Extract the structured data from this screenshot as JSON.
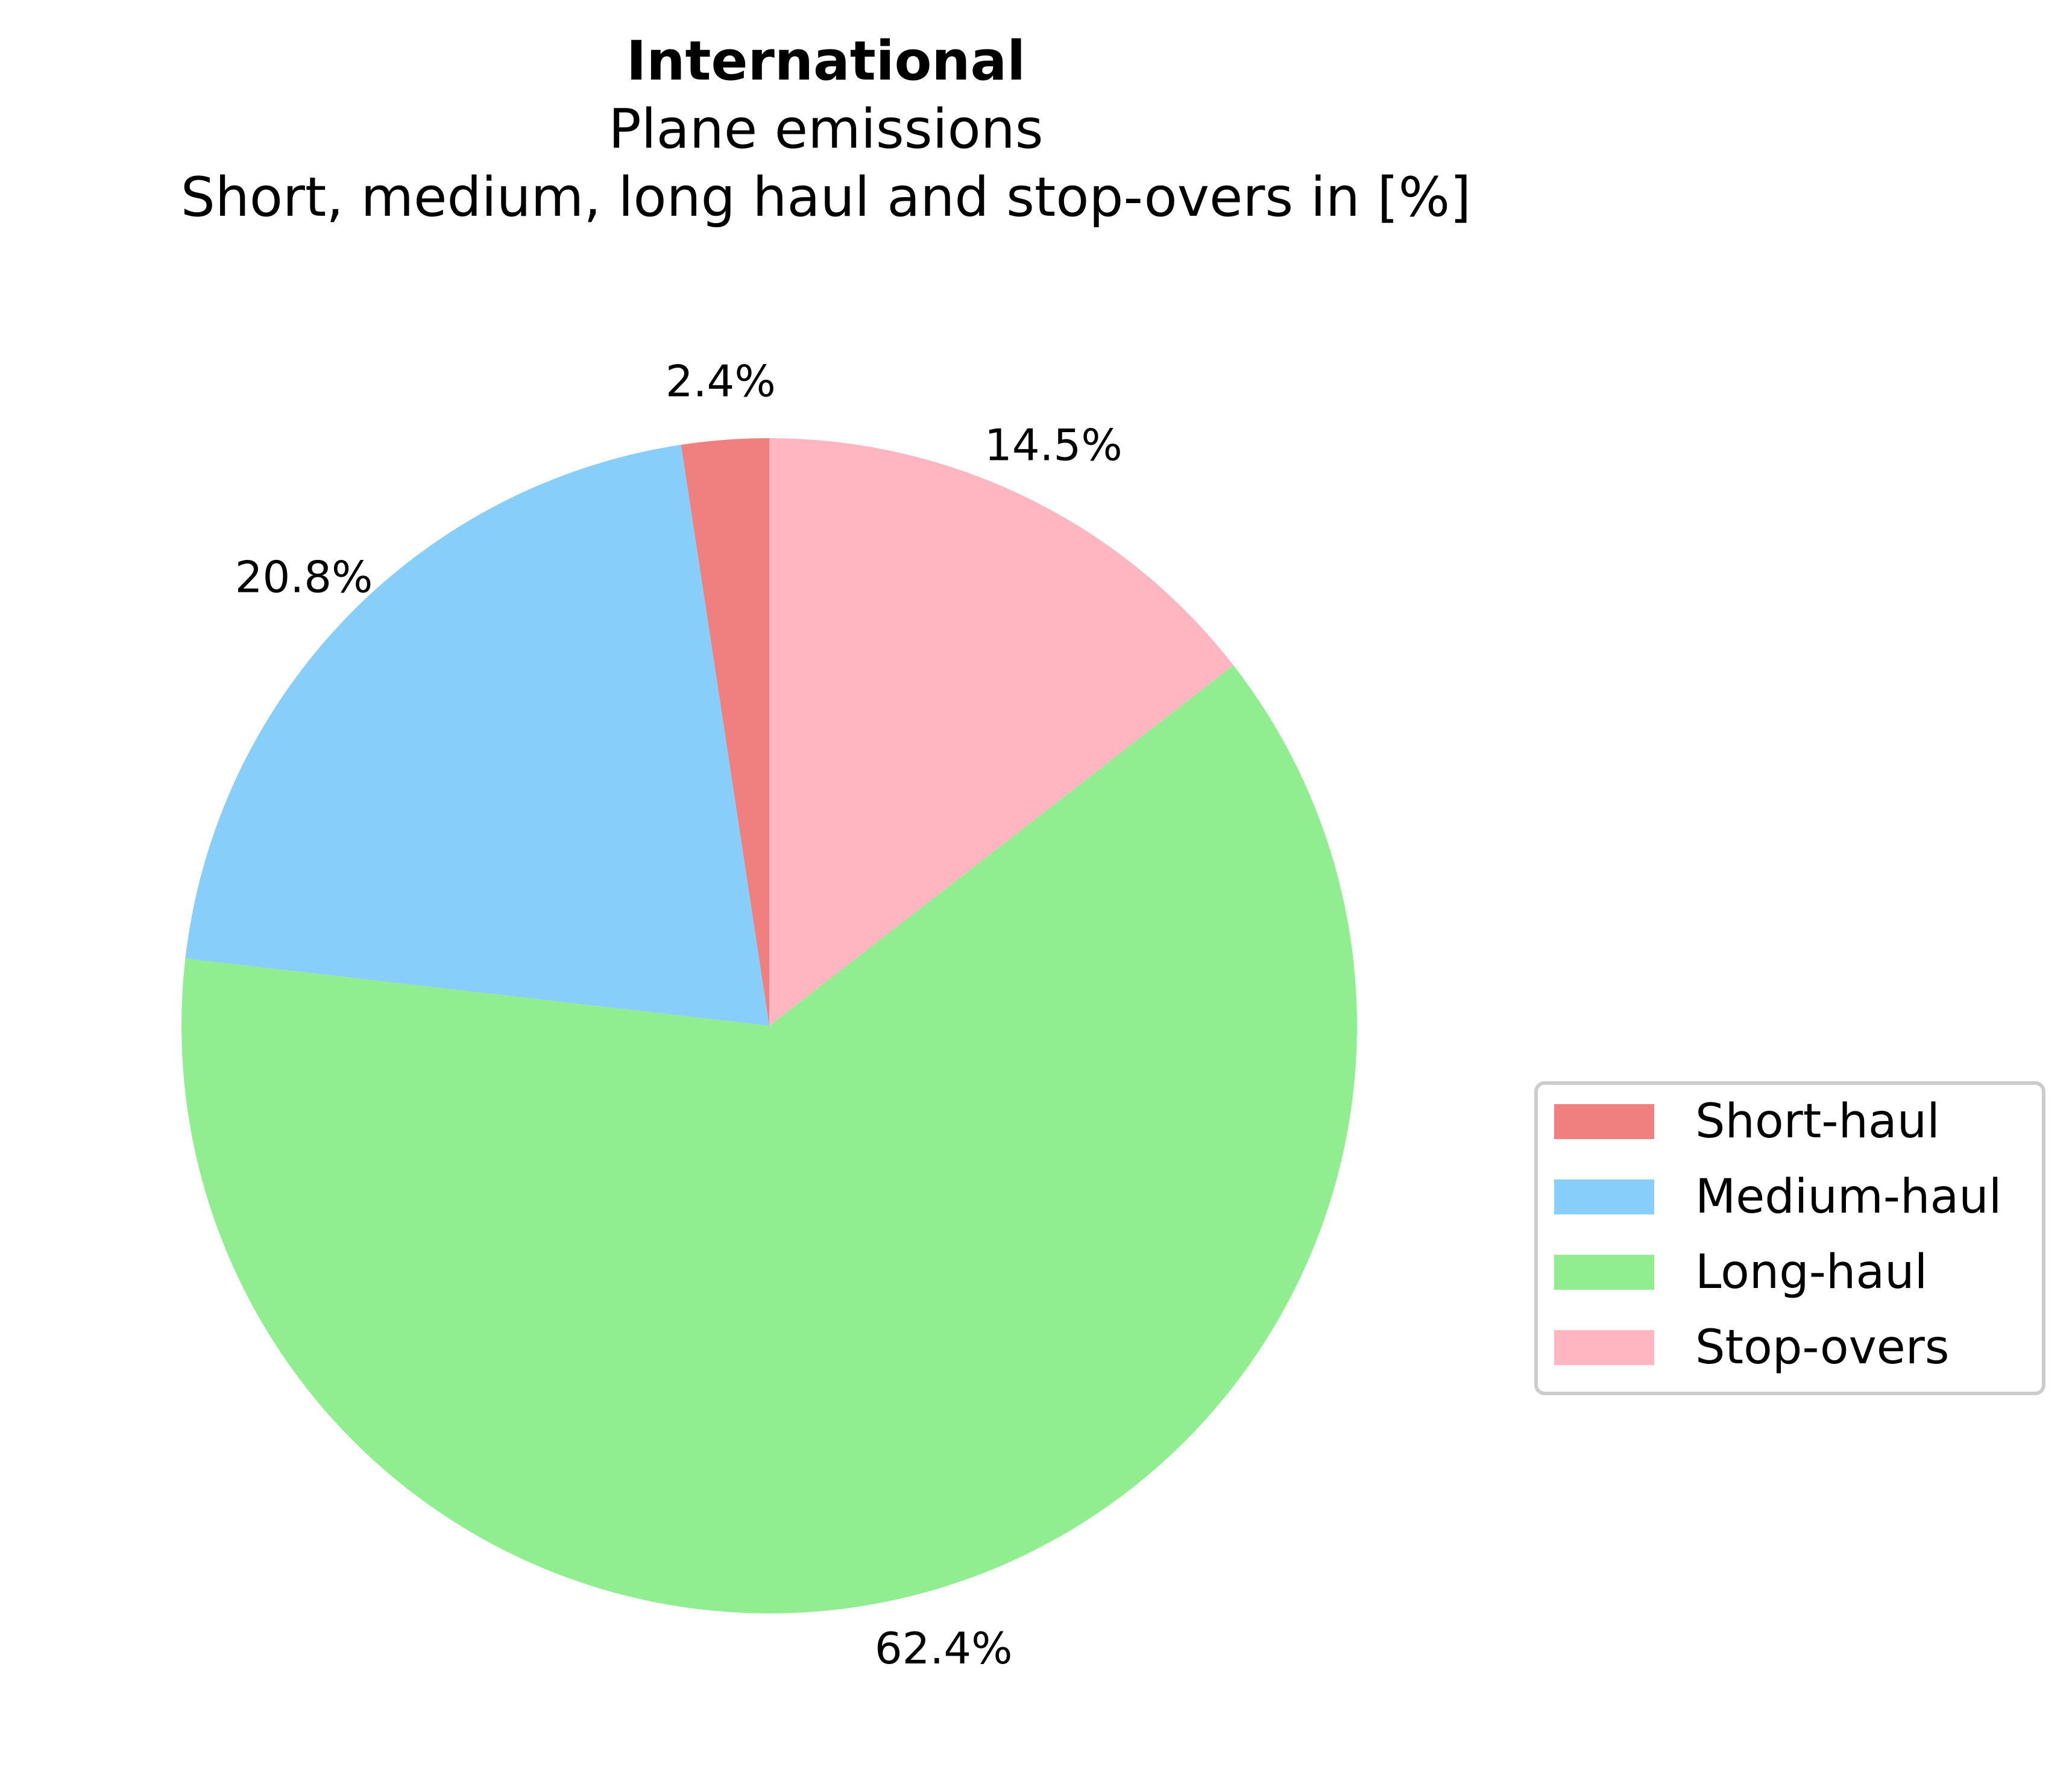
{
  "chart_data": {
    "type": "pie",
    "title": "International",
    "subtitle_lines": [
      "Plane emissions",
      "Short, medium, long haul and stop-overs in [%]"
    ],
    "slices": [
      {
        "label": "Short-haul",
        "value": 2.4,
        "pct_label": "2.4%",
        "color": "#F08080"
      },
      {
        "label": "Medium-haul",
        "value": 20.8,
        "pct_label": "20.8%",
        "color": "#87CEFA"
      },
      {
        "label": "Long-haul",
        "value": 62.4,
        "pct_label": "62.4%",
        "color": "#90EE90"
      },
      {
        "label": "Stop-overs",
        "value": 14.5,
        "pct_label": "14.5%",
        "color": "#FFB6C1"
      }
    ],
    "start_angle_deg": 90,
    "direction": "counterclockwise",
    "legend_position": "center-right"
  }
}
